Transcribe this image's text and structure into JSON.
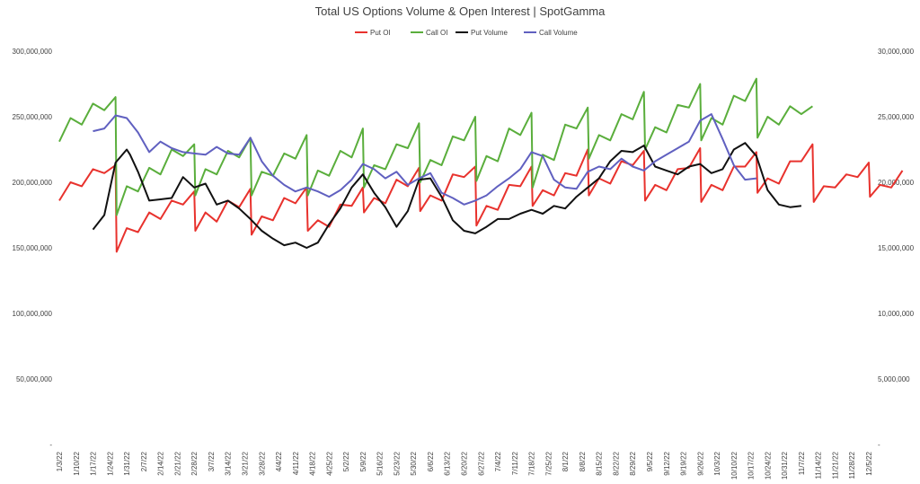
{
  "chart_data": {
    "type": "line",
    "title": "Total US Options Volume & Open Interest | SpotGamma",
    "legend_position": "top",
    "grid": false,
    "x_tick_labels": [
      "1/3/22",
      "1/10/22",
      "1/17/22",
      "1/24/22",
      "1/31/22",
      "2/7/22",
      "2/14/22",
      "2/21/22",
      "2/28/22",
      "3/7/22",
      "3/14/22",
      "3/21/22",
      "3/28/22",
      "4/4/22",
      "4/11/22",
      "4/18/22",
      "4/25/22",
      "5/2/22",
      "5/9/22",
      "5/16/22",
      "5/23/22",
      "5/30/22",
      "6/6/22",
      "6/13/22",
      "6/20/22",
      "6/27/22",
      "7/4/22",
      "7/11/22",
      "7/18/22",
      "7/25/22",
      "8/1/22",
      "8/8/22",
      "8/15/22",
      "8/22/22",
      "8/29/22",
      "9/5/22",
      "9/12/22",
      "9/19/22",
      "9/26/22",
      "10/3/22",
      "10/10/22",
      "10/17/22",
      "10/24/22",
      "10/31/22",
      "11/7/22",
      "11/14/22",
      "11/21/22",
      "11/28/22",
      "12/5/22"
    ],
    "y_left": {
      "min": 0,
      "max": 300000000,
      "ticks": [
        "-",
        "50,000,000",
        "100,000,000",
        "150,000,000",
        "200,000,000",
        "250,000,000",
        "300,000,000"
      ]
    },
    "y_right": {
      "min": 0,
      "max": 30000000,
      "ticks": [
        "-",
        "5,000,000",
        "10,000,000",
        "15,000,000",
        "20,000,000",
        "25,000,000",
        "30,000,000"
      ]
    },
    "series": [
      {
        "name": "Put OI",
        "color": "#e8322d",
        "axis": "left",
        "points": [
          [
            0,
            186
          ],
          [
            1,
            200
          ],
          [
            2,
            197
          ],
          [
            3,
            210
          ],
          [
            4,
            207
          ],
          [
            5,
            213
          ],
          [
            5.1,
            147
          ],
          [
            6,
            165
          ],
          [
            7,
            162
          ],
          [
            8,
            177
          ],
          [
            9,
            172
          ],
          [
            10,
            186
          ],
          [
            11,
            183
          ],
          [
            12,
            193
          ],
          [
            12.1,
            163
          ],
          [
            13,
            177
          ],
          [
            14,
            170
          ],
          [
            15,
            186
          ],
          [
            16,
            181
          ],
          [
            17,
            195
          ],
          [
            17.1,
            160
          ],
          [
            18,
            174
          ],
          [
            19,
            171
          ],
          [
            20,
            188
          ],
          [
            21,
            184
          ],
          [
            22,
            196
          ],
          [
            22.1,
            163
          ],
          [
            23,
            171
          ],
          [
            24,
            166
          ],
          [
            25,
            183
          ],
          [
            26,
            182
          ],
          [
            27,
            196
          ],
          [
            27.1,
            177
          ],
          [
            28,
            188
          ],
          [
            29,
            184
          ],
          [
            30,
            202
          ],
          [
            31,
            197
          ],
          [
            32,
            211
          ],
          [
            32.1,
            178
          ],
          [
            33,
            190
          ],
          [
            34,
            186
          ],
          [
            35,
            206
          ],
          [
            36,
            204
          ],
          [
            37,
            212
          ],
          [
            37.1,
            167
          ],
          [
            38,
            182
          ],
          [
            39,
            179
          ],
          [
            40,
            198
          ],
          [
            41,
            197
          ],
          [
            42,
            212
          ],
          [
            42.1,
            182
          ],
          [
            43,
            194
          ],
          [
            44,
            190
          ],
          [
            45,
            207
          ],
          [
            46,
            205
          ],
          [
            47,
            225
          ],
          [
            47.1,
            190
          ],
          [
            48,
            203
          ],
          [
            49,
            199
          ],
          [
            50,
            216
          ],
          [
            51,
            213
          ],
          [
            52,
            224
          ],
          [
            52.1,
            186
          ],
          [
            53,
            198
          ],
          [
            54,
            194
          ],
          [
            55,
            210
          ],
          [
            56,
            211
          ],
          [
            57,
            226
          ],
          [
            57.1,
            185
          ],
          [
            58,
            198
          ],
          [
            59,
            194
          ],
          [
            60,
            212
          ],
          [
            61,
            212
          ],
          [
            62,
            223
          ],
          [
            62.1,
            192
          ],
          [
            63,
            203
          ],
          [
            64,
            199
          ],
          [
            65,
            216
          ],
          [
            66,
            216
          ],
          [
            67,
            229
          ],
          [
            67.1,
            185
          ],
          [
            68,
            197
          ],
          [
            69,
            196
          ],
          [
            70,
            206
          ],
          [
            71,
            204
          ],
          [
            72,
            215
          ],
          [
            72.1,
            189
          ],
          [
            73,
            198
          ],
          [
            74,
            196
          ],
          [
            75,
            209
          ]
        ]
      },
      {
        "name": "Call OI",
        "color": "#5aae3c",
        "axis": "left",
        "points": [
          [
            0,
            231
          ],
          [
            1,
            249
          ],
          [
            2,
            244
          ],
          [
            3,
            260
          ],
          [
            4,
            255
          ],
          [
            5,
            265
          ],
          [
            5.1,
            175
          ],
          [
            6,
            197
          ],
          [
            7,
            193
          ],
          [
            8,
            211
          ],
          [
            9,
            206
          ],
          [
            10,
            225
          ],
          [
            11,
            220
          ],
          [
            12,
            229
          ],
          [
            12.1,
            190
          ],
          [
            13,
            210
          ],
          [
            14,
            206
          ],
          [
            15,
            224
          ],
          [
            16,
            219
          ],
          [
            17,
            234
          ],
          [
            17.1,
            190
          ],
          [
            18,
            208
          ],
          [
            19,
            205
          ],
          [
            20,
            222
          ],
          [
            21,
            218
          ],
          [
            22,
            236
          ],
          [
            22.1,
            190
          ],
          [
            23,
            209
          ],
          [
            24,
            205
          ],
          [
            25,
            224
          ],
          [
            26,
            219
          ],
          [
            27,
            241
          ],
          [
            27.1,
            196
          ],
          [
            28,
            213
          ],
          [
            29,
            210
          ],
          [
            30,
            229
          ],
          [
            31,
            226
          ],
          [
            32,
            245
          ],
          [
            32.1,
            200
          ],
          [
            33,
            217
          ],
          [
            34,
            213
          ],
          [
            35,
            235
          ],
          [
            36,
            232
          ],
          [
            37,
            250
          ],
          [
            37.1,
            201
          ],
          [
            38,
            220
          ],
          [
            39,
            216
          ],
          [
            40,
            241
          ],
          [
            41,
            236
          ],
          [
            42,
            253
          ],
          [
            42.1,
            196
          ],
          [
            43,
            221
          ],
          [
            44,
            217
          ],
          [
            45,
            244
          ],
          [
            46,
            241
          ],
          [
            47,
            257
          ],
          [
            47.1,
            218
          ],
          [
            48,
            236
          ],
          [
            49,
            232
          ],
          [
            50,
            252
          ],
          [
            51,
            248
          ],
          [
            52,
            269
          ],
          [
            52.1,
            225
          ],
          [
            53,
            242
          ],
          [
            54,
            238
          ],
          [
            55,
            259
          ],
          [
            56,
            257
          ],
          [
            57,
            275
          ],
          [
            57.1,
            232
          ],
          [
            58,
            249
          ],
          [
            59,
            244
          ],
          [
            60,
            266
          ],
          [
            61,
            262
          ],
          [
            62,
            279
          ],
          [
            62.1,
            234
          ],
          [
            63,
            250
          ],
          [
            64,
            244
          ],
          [
            65,
            258
          ],
          [
            66,
            252
          ],
          [
            67,
            258
          ]
        ]
      },
      {
        "name": "Put Volume",
        "color": "#111111",
        "axis": "right",
        "points": [
          [
            3,
            16.4
          ],
          [
            4,
            17.5
          ],
          [
            5,
            21.5
          ],
          [
            6,
            22.5
          ],
          [
            6.3,
            22.1
          ],
          [
            7,
            20.8
          ],
          [
            8,
            18.6
          ],
          [
            9,
            18.7
          ],
          [
            10,
            18.8
          ],
          [
            11,
            20.4
          ],
          [
            12,
            19.6
          ],
          [
            13,
            19.9
          ],
          [
            14,
            18.3
          ],
          [
            15,
            18.6
          ],
          [
            16,
            18.0
          ],
          [
            17,
            17.2
          ],
          [
            18,
            16.3
          ],
          [
            19,
            15.7
          ],
          [
            20,
            15.2
          ],
          [
            21,
            15.4
          ],
          [
            22,
            15.0
          ],
          [
            23,
            15.4
          ],
          [
            24,
            16.8
          ],
          [
            25,
            18.0
          ],
          [
            26,
            19.6
          ],
          [
            27,
            20.6
          ],
          [
            28,
            19.2
          ],
          [
            29,
            18.1
          ],
          [
            30,
            16.6
          ],
          [
            31,
            17.8
          ],
          [
            32,
            20.2
          ],
          [
            33,
            20.3
          ],
          [
            34,
            18.9
          ],
          [
            35,
            17.1
          ],
          [
            36,
            16.3
          ],
          [
            37,
            16.1
          ],
          [
            38,
            16.6
          ],
          [
            39,
            17.2
          ],
          [
            40,
            17.2
          ],
          [
            41,
            17.6
          ],
          [
            42,
            17.9
          ],
          [
            43,
            17.6
          ],
          [
            44,
            18.2
          ],
          [
            45,
            18.0
          ],
          [
            46,
            18.9
          ],
          [
            47,
            19.6
          ],
          [
            48,
            20.3
          ],
          [
            49,
            21.6
          ],
          [
            50,
            22.4
          ],
          [
            51,
            22.3
          ],
          [
            52,
            22.8
          ],
          [
            53,
            21.2
          ],
          [
            54,
            20.9
          ],
          [
            55,
            20.6
          ],
          [
            56,
            21.2
          ],
          [
            57,
            21.4
          ],
          [
            58,
            20.7
          ],
          [
            59,
            21.0
          ],
          [
            60,
            22.5
          ],
          [
            61,
            23.0
          ],
          [
            62,
            22.0
          ],
          [
            63,
            19.4
          ],
          [
            64,
            18.3
          ],
          [
            65,
            18.1
          ],
          [
            66,
            18.2
          ]
        ]
      },
      {
        "name": "Call Volume",
        "color": "#6060c0",
        "axis": "right",
        "points": [
          [
            3,
            23.9
          ],
          [
            4,
            24.1
          ],
          [
            5,
            25.1
          ],
          [
            6,
            24.9
          ],
          [
            7,
            23.8
          ],
          [
            8,
            22.3
          ],
          [
            9,
            23.1
          ],
          [
            10,
            22.6
          ],
          [
            11,
            22.3
          ],
          [
            12,
            22.2
          ],
          [
            13,
            22.1
          ],
          [
            14,
            22.7
          ],
          [
            15,
            22.2
          ],
          [
            16,
            22.1
          ],
          [
            17,
            23.4
          ],
          [
            18,
            21.6
          ],
          [
            19,
            20.5
          ],
          [
            20,
            19.8
          ],
          [
            21,
            19.3
          ],
          [
            22,
            19.6
          ],
          [
            23,
            19.3
          ],
          [
            24,
            18.9
          ],
          [
            25,
            19.4
          ],
          [
            26,
            20.2
          ],
          [
            27,
            21.4
          ],
          [
            28,
            21.0
          ],
          [
            29,
            20.3
          ],
          [
            30,
            20.8
          ],
          [
            31,
            19.8
          ],
          [
            32,
            20.3
          ],
          [
            33,
            20.7
          ],
          [
            34,
            19.2
          ],
          [
            35,
            18.8
          ],
          [
            36,
            18.3
          ],
          [
            37,
            18.6
          ],
          [
            38,
            19.0
          ],
          [
            39,
            19.7
          ],
          [
            40,
            20.3
          ],
          [
            41,
            21.0
          ],
          [
            42,
            22.3
          ],
          [
            43,
            22.0
          ],
          [
            44,
            20.2
          ],
          [
            45,
            19.6
          ],
          [
            46,
            19.5
          ],
          [
            47,
            20.8
          ],
          [
            48,
            21.2
          ],
          [
            49,
            21.0
          ],
          [
            50,
            21.8
          ],
          [
            51,
            21.2
          ],
          [
            52,
            20.9
          ],
          [
            53,
            21.6
          ],
          [
            54,
            22.1
          ],
          [
            55,
            22.6
          ],
          [
            56,
            23.1
          ],
          [
            57,
            24.7
          ],
          [
            58,
            25.2
          ],
          [
            59,
            23.3
          ],
          [
            60,
            21.3
          ],
          [
            61,
            20.2
          ],
          [
            62,
            20.3
          ]
        ]
      }
    ]
  }
}
